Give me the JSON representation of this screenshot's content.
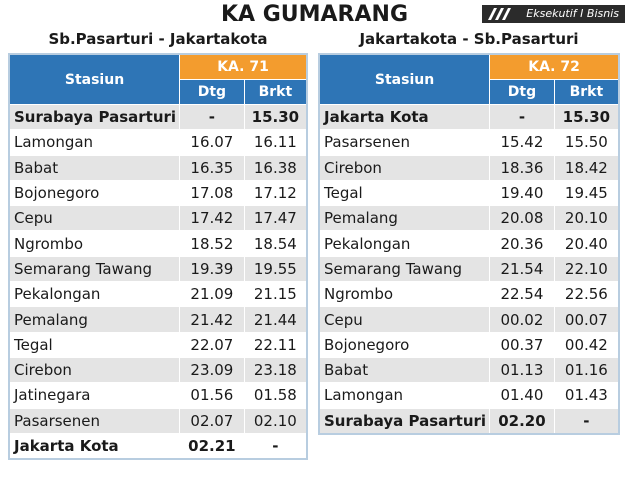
{
  "header": {
    "title": "KA GUMARANG",
    "badge": "Eksekutif I Bisnis"
  },
  "tables": [
    {
      "subtitle": "Sb.Pasarturi - Jakartakota",
      "station_header": "Stasiun",
      "train": "KA. 71",
      "columns": [
        "Dtg",
        "Brkt"
      ],
      "rows": [
        [
          "Surabaya Pasarturi",
          "-",
          "15.30"
        ],
        [
          "Lamongan",
          "16.07",
          "16.11"
        ],
        [
          "Babat",
          "16.35",
          "16.38"
        ],
        [
          "Bojonegoro",
          "17.08",
          "17.12"
        ],
        [
          "Cepu",
          "17.42",
          "17.47"
        ],
        [
          "Ngrombo",
          "18.52",
          "18.54"
        ],
        [
          "Semarang Tawang",
          "19.39",
          "19.55"
        ],
        [
          "Pekalongan",
          "21.09",
          "21.15"
        ],
        [
          "Pemalang",
          "21.42",
          "21.44"
        ],
        [
          "Tegal",
          "22.07",
          "22.11"
        ],
        [
          "Cirebon",
          "23.09",
          "23.18"
        ],
        [
          "Jatinegara",
          "01.56",
          "01.58"
        ],
        [
          "Pasarsenen",
          "02.07",
          "02.10"
        ],
        [
          "Jakarta Kota",
          "02.21",
          "-"
        ]
      ]
    },
    {
      "subtitle": "Jakartakota - Sb.Pasarturi",
      "station_header": "Stasiun",
      "train": "KA. 72",
      "columns": [
        "Dtg",
        "Brkt"
      ],
      "rows": [
        [
          "Jakarta Kota",
          "-",
          "15.30"
        ],
        [
          "Pasarsenen",
          "15.42",
          "15.50"
        ],
        [
          "Cirebon",
          "18.36",
          "18.42"
        ],
        [
          "Tegal",
          "19.40",
          "19.45"
        ],
        [
          "Pemalang",
          "20.08",
          "20.10"
        ],
        [
          "Pekalongan",
          "20.36",
          "20.40"
        ],
        [
          "Semarang Tawang",
          "21.54",
          "22.10"
        ],
        [
          "Ngrombo",
          "22.54",
          "22.56"
        ],
        [
          "Cepu",
          "00.02",
          "00.07"
        ],
        [
          "Bojonegoro",
          "00.37",
          "00.42"
        ],
        [
          "Babat",
          "01.13",
          "01.16"
        ],
        [
          "Lamongan",
          "01.40",
          "01.43"
        ],
        [
          "Surabaya Pasarturi",
          "02.20",
          "-"
        ]
      ]
    }
  ]
}
